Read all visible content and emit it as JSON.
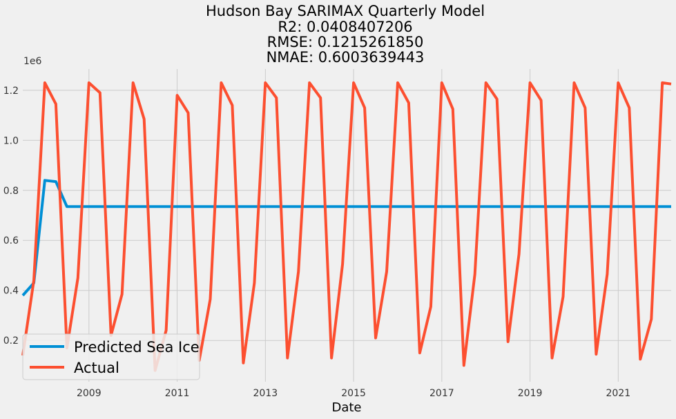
{
  "chart_data": {
    "type": "line",
    "title_lines": [
      "Hudson Bay SARIMAX Quarterly Model",
      "R2: 0.0408407206",
      "RMSE: 0.1215261850",
      "NMAE: 0.6003639443"
    ],
    "xlabel": "Date",
    "ylabel": "",
    "y_offset_label": "1e6",
    "xlim": [
      2007.5,
      2022.2
    ],
    "ylim": [
      0.035,
      1.285
    ],
    "x_ticks": [
      2009,
      2011,
      2013,
      2015,
      2017,
      2019,
      2021
    ],
    "x_tick_labels": [
      "2009",
      "2011",
      "2013",
      "2015",
      "2017",
      "2019",
      "2021"
    ],
    "y_ticks": [
      0.2,
      0.4,
      0.6,
      0.8,
      1.0,
      1.2
    ],
    "y_tick_labels": [
      "0.2",
      "0.4",
      "0.6",
      "0.8",
      "1.0",
      "1.2"
    ],
    "grid": true,
    "legend_position": "bottom-left",
    "series": [
      {
        "name": "Predicted Sea Ice",
        "color": "#008fd5",
        "x": [
          2007.5,
          2007.75,
          2008.0,
          2008.25,
          2008.5,
          2009.0,
          2010.0,
          2011.0,
          2012.0,
          2013.0,
          2014.0,
          2015.0,
          2016.0,
          2017.0,
          2018.0,
          2019.0,
          2020.0,
          2021.0,
          2022.0,
          2022.2
        ],
        "values": [
          0.38,
          0.43,
          0.84,
          0.835,
          0.735,
          0.735,
          0.735,
          0.735,
          0.735,
          0.735,
          0.735,
          0.735,
          0.735,
          0.735,
          0.735,
          0.735,
          0.735,
          0.735,
          0.735,
          0.735
        ]
      },
      {
        "name": "Actual",
        "color": "#fc4f30",
        "x": [
          2007.5,
          2007.75,
          2008.0,
          2008.25,
          2008.5,
          2008.75,
          2009.0,
          2009.25,
          2009.5,
          2009.75,
          2010.0,
          2010.25,
          2010.5,
          2010.75,
          2011.0,
          2011.25,
          2011.5,
          2011.75,
          2012.0,
          2012.25,
          2012.5,
          2012.75,
          2013.0,
          2013.25,
          2013.5,
          2013.75,
          2014.0,
          2014.25,
          2014.5,
          2014.75,
          2015.0,
          2015.25,
          2015.5,
          2015.75,
          2016.0,
          2016.25,
          2016.5,
          2016.75,
          2017.0,
          2017.25,
          2017.5,
          2017.75,
          2018.0,
          2018.25,
          2018.5,
          2018.75,
          2019.0,
          2019.25,
          2019.5,
          2019.75,
          2020.0,
          2020.25,
          2020.5,
          2020.75,
          2021.0,
          2021.25,
          2021.5,
          2021.75,
          2022.0,
          2022.2
        ],
        "values": [
          0.14,
          0.44,
          1.23,
          1.145,
          0.17,
          0.45,
          1.23,
          1.19,
          0.22,
          0.385,
          1.23,
          1.085,
          0.08,
          0.24,
          1.18,
          1.11,
          0.12,
          0.365,
          1.23,
          1.14,
          0.11,
          0.43,
          1.23,
          1.17,
          0.13,
          0.475,
          1.23,
          1.17,
          0.13,
          0.505,
          1.23,
          1.13,
          0.21,
          0.475,
          1.23,
          1.15,
          0.15,
          0.335,
          1.23,
          1.125,
          0.1,
          0.465,
          1.23,
          1.165,
          0.195,
          0.545,
          1.23,
          1.16,
          0.13,
          0.375,
          1.23,
          1.13,
          0.145,
          0.465,
          1.23,
          1.13,
          0.125,
          0.285,
          1.23,
          1.225
        ]
      }
    ]
  }
}
